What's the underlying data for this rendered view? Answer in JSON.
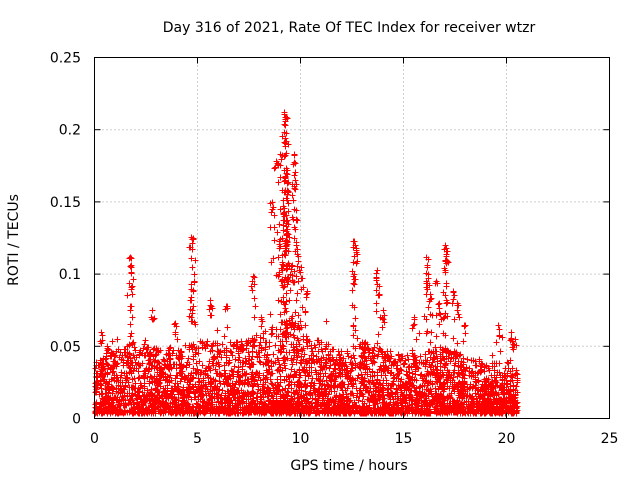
{
  "chart_data": {
    "type": "scatter",
    "title": "Day 316 of 2021, Rate Of TEC Index for receiver wtzr",
    "xlabel": "GPS time / hours",
    "ylabel": "ROTI / TECUs",
    "xlim": [
      0,
      25
    ],
    "ylim": [
      0,
      0.25
    ],
    "x_ticks": [
      0,
      5,
      10,
      15,
      20,
      25
    ],
    "x_tick_labels": [
      "0",
      "5",
      "10",
      "15",
      "20",
      "25"
    ],
    "y_ticks": [
      0,
      0.05,
      0.1,
      0.15,
      0.2,
      0.25
    ],
    "y_tick_labels": [
      "0",
      "0.05",
      "0.1",
      "0.15",
      "0.2",
      "0.25"
    ],
    "grid": true,
    "marker": "+",
    "color": "#ff0000",
    "data_range_x": [
      0,
      20.5
    ],
    "notable_points": [
      {
        "x": 0.3,
        "y": 0.06
      },
      {
        "x": 0.6,
        "y": 0.05
      },
      {
        "x": 1.7,
        "y": 0.112
      },
      {
        "x": 1.75,
        "y": 0.106
      },
      {
        "x": 1.8,
        "y": 0.092
      },
      {
        "x": 1.75,
        "y": 0.078
      },
      {
        "x": 2.8,
        "y": 0.075
      },
      {
        "x": 3.9,
        "y": 0.066
      },
      {
        "x": 4.7,
        "y": 0.126
      },
      {
        "x": 4.8,
        "y": 0.125
      },
      {
        "x": 4.75,
        "y": 0.105
      },
      {
        "x": 4.7,
        "y": 0.09
      },
      {
        "x": 5.6,
        "y": 0.082
      },
      {
        "x": 6.4,
        "y": 0.078
      },
      {
        "x": 7.7,
        "y": 0.099
      },
      {
        "x": 8.1,
        "y": 0.07
      },
      {
        "x": 8.6,
        "y": 0.15
      },
      {
        "x": 8.8,
        "y": 0.178
      },
      {
        "x": 9.0,
        "y": 0.183
      },
      {
        "x": 9.2,
        "y": 0.212
      },
      {
        "x": 9.3,
        "y": 0.209
      },
      {
        "x": 9.25,
        "y": 0.194
      },
      {
        "x": 9.2,
        "y": 0.172
      },
      {
        "x": 9.3,
        "y": 0.17
      },
      {
        "x": 9.35,
        "y": 0.158
      },
      {
        "x": 9.2,
        "y": 0.14
      },
      {
        "x": 9.3,
        "y": 0.137
      },
      {
        "x": 9.0,
        "y": 0.124
      },
      {
        "x": 9.4,
        "y": 0.128
      },
      {
        "x": 9.7,
        "y": 0.183
      },
      {
        "x": 9.75,
        "y": 0.165
      },
      {
        "x": 9.7,
        "y": 0.145
      },
      {
        "x": 9.8,
        "y": 0.12
      },
      {
        "x": 9.6,
        "y": 0.106
      },
      {
        "x": 10.0,
        "y": 0.105
      },
      {
        "x": 10.3,
        "y": 0.088
      },
      {
        "x": 9.1,
        "y": 0.107
      },
      {
        "x": 12.6,
        "y": 0.123
      },
      {
        "x": 12.7,
        "y": 0.117
      },
      {
        "x": 12.6,
        "y": 0.1
      },
      {
        "x": 13.7,
        "y": 0.103
      },
      {
        "x": 13.8,
        "y": 0.092
      },
      {
        "x": 14.0,
        "y": 0.075
      },
      {
        "x": 15.5,
        "y": 0.07
      },
      {
        "x": 16.1,
        "y": 0.112
      },
      {
        "x": 16.2,
        "y": 0.1
      },
      {
        "x": 16.3,
        "y": 0.086
      },
      {
        "x": 16.6,
        "y": 0.095
      },
      {
        "x": 16.7,
        "y": 0.08
      },
      {
        "x": 17.0,
        "y": 0.12
      },
      {
        "x": 17.1,
        "y": 0.116
      },
      {
        "x": 17.05,
        "y": 0.11
      },
      {
        "x": 17.4,
        "y": 0.088
      },
      {
        "x": 17.6,
        "y": 0.08
      },
      {
        "x": 18.0,
        "y": 0.065
      },
      {
        "x": 19.6,
        "y": 0.065
      },
      {
        "x": 20.2,
        "y": 0.06
      },
      {
        "x": 20.4,
        "y": 0.055
      }
    ],
    "activity_envelope": [
      {
        "x": 0,
        "y": 0.035
      },
      {
        "x": 1,
        "y": 0.045
      },
      {
        "x": 2,
        "y": 0.05
      },
      {
        "x": 3,
        "y": 0.045
      },
      {
        "x": 4,
        "y": 0.045
      },
      {
        "x": 5,
        "y": 0.05
      },
      {
        "x": 6,
        "y": 0.05
      },
      {
        "x": 7,
        "y": 0.05
      },
      {
        "x": 8,
        "y": 0.055
      },
      {
        "x": 9,
        "y": 0.065
      },
      {
        "x": 10,
        "y": 0.06
      },
      {
        "x": 11,
        "y": 0.05
      },
      {
        "x": 12,
        "y": 0.045
      },
      {
        "x": 13,
        "y": 0.05
      },
      {
        "x": 14,
        "y": 0.045
      },
      {
        "x": 15,
        "y": 0.04
      },
      {
        "x": 16,
        "y": 0.045
      },
      {
        "x": 17,
        "y": 0.045
      },
      {
        "x": 18,
        "y": 0.04
      },
      {
        "x": 19,
        "y": 0.035
      },
      {
        "x": 20,
        "y": 0.035
      },
      {
        "x": 20.5,
        "y": 0.03
      }
    ]
  }
}
